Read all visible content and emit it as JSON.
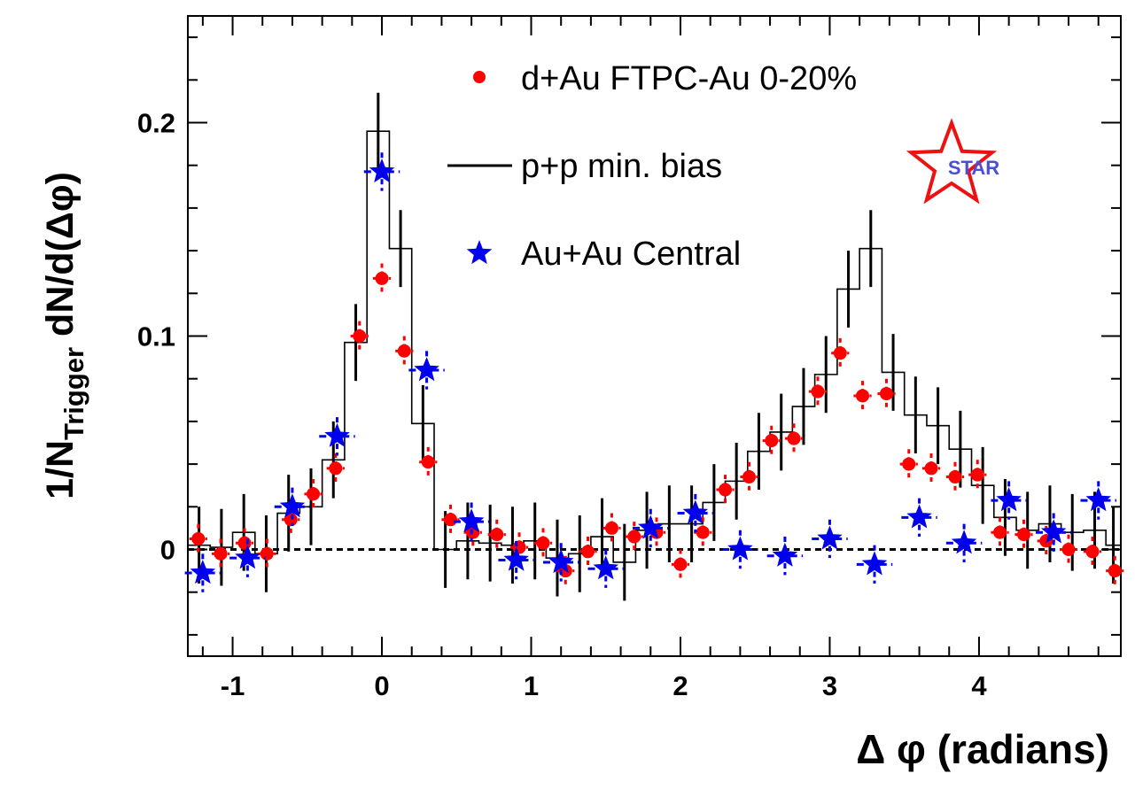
{
  "chart_data": {
    "type": "scatter",
    "xlabel": "Δ φ (radians)",
    "ylabel": {
      "prefix": "1/N",
      "subscript": "Trigger",
      "suffix": " dN/d(Δφ)"
    },
    "xlim": [
      -1.3,
      4.95
    ],
    "ylim": [
      -0.05,
      0.25
    ],
    "x_ticks": [
      -1,
      0,
      1,
      2,
      3,
      4
    ],
    "y_ticks": [
      0,
      0.1,
      0.2
    ],
    "y_tick_labels": [
      "0",
      "0.1",
      "0.2"
    ],
    "grid": false,
    "reference_line": {
      "y": 0,
      "style": "dotted"
    },
    "logo_text": "STAR",
    "legend": {
      "position": "top-right"
    },
    "series": [
      {
        "name": "d+Au FTPC-Au 0-20%",
        "marker": "circle",
        "color": "#ff0000",
        "x": [
          -1.23,
          -1.08,
          -0.92,
          -0.77,
          -0.61,
          -0.46,
          -0.31,
          -0.15,
          0.0,
          0.15,
          0.31,
          0.46,
          0.61,
          0.77,
          0.92,
          1.08,
          1.23,
          1.38,
          1.54,
          1.69,
          1.84,
          2.0,
          2.15,
          2.3,
          2.46,
          2.61,
          2.76,
          2.92,
          3.07,
          3.22,
          3.38,
          3.53,
          3.68,
          3.84,
          3.99,
          4.14,
          4.3,
          4.45,
          4.6,
          4.76,
          4.91
        ],
        "y": [
          0.005,
          -0.002,
          0.003,
          -0.002,
          0.014,
          0.026,
          0.038,
          0.1,
          0.127,
          0.093,
          0.041,
          0.014,
          0.008,
          0.007,
          0.001,
          0.003,
          -0.01,
          -0.001,
          0.01,
          0.006,
          0.008,
          -0.007,
          0.008,
          0.028,
          0.034,
          0.051,
          0.052,
          0.074,
          0.092,
          0.072,
          0.073,
          0.04,
          0.038,
          0.034,
          0.035,
          0.008,
          0.007,
          0.004,
          0.0,
          -0.001,
          -0.01
        ],
        "yerr": 0.007,
        "xerr": 0.06
      },
      {
        "name": "p+p min. bias",
        "marker": "step",
        "color": "#000000",
        "bin_edges": [
          -1.3,
          -1.15,
          -1.0,
          -0.85,
          -0.7,
          -0.55,
          -0.4,
          -0.25,
          -0.1,
          0.05,
          0.2,
          0.35,
          0.5,
          0.65,
          0.8,
          0.95,
          1.1,
          1.25,
          1.4,
          1.55,
          1.7,
          1.85,
          2.0,
          2.15,
          2.3,
          2.45,
          2.6,
          2.75,
          2.9,
          3.05,
          3.2,
          3.35,
          3.5,
          3.65,
          3.8,
          3.95,
          4.1,
          4.25,
          4.4,
          4.55,
          4.7,
          4.85,
          4.95
        ],
        "values": [
          0.002,
          0.001,
          0.008,
          -0.002,
          0.017,
          0.02,
          0.042,
          0.097,
          0.196,
          0.141,
          0.059,
          0.0,
          0.004,
          0.003,
          0.002,
          0.004,
          -0.004,
          -0.002,
          0.006,
          -0.006,
          0.009,
          0.012,
          0.012,
          0.022,
          0.032,
          0.046,
          0.055,
          0.067,
          0.082,
          0.122,
          0.141,
          0.083,
          0.063,
          0.058,
          0.047,
          0.03,
          0.015,
          0.009,
          0.012,
          0.008,
          0.009,
          0.002
        ],
        "yerr": 0.018
      },
      {
        "name": "Au+Au Central",
        "marker": "star",
        "color": "#0000ee",
        "x": [
          -1.2,
          -0.9,
          -0.6,
          -0.3,
          0.0,
          0.3,
          0.6,
          0.9,
          1.2,
          1.5,
          1.8,
          2.1,
          2.4,
          2.7,
          3.0,
          3.3,
          3.6,
          3.9,
          4.2,
          4.5,
          4.8
        ],
        "y": [
          -0.011,
          -0.004,
          0.02,
          0.053,
          0.177,
          0.084,
          0.013,
          -0.005,
          -0.006,
          -0.009,
          0.01,
          0.017,
          0.0,
          -0.003,
          0.005,
          -0.007,
          0.015,
          0.003,
          0.023,
          0.008,
          0.023
        ],
        "yerr": 0.009,
        "xerr": 0.12
      }
    ]
  }
}
